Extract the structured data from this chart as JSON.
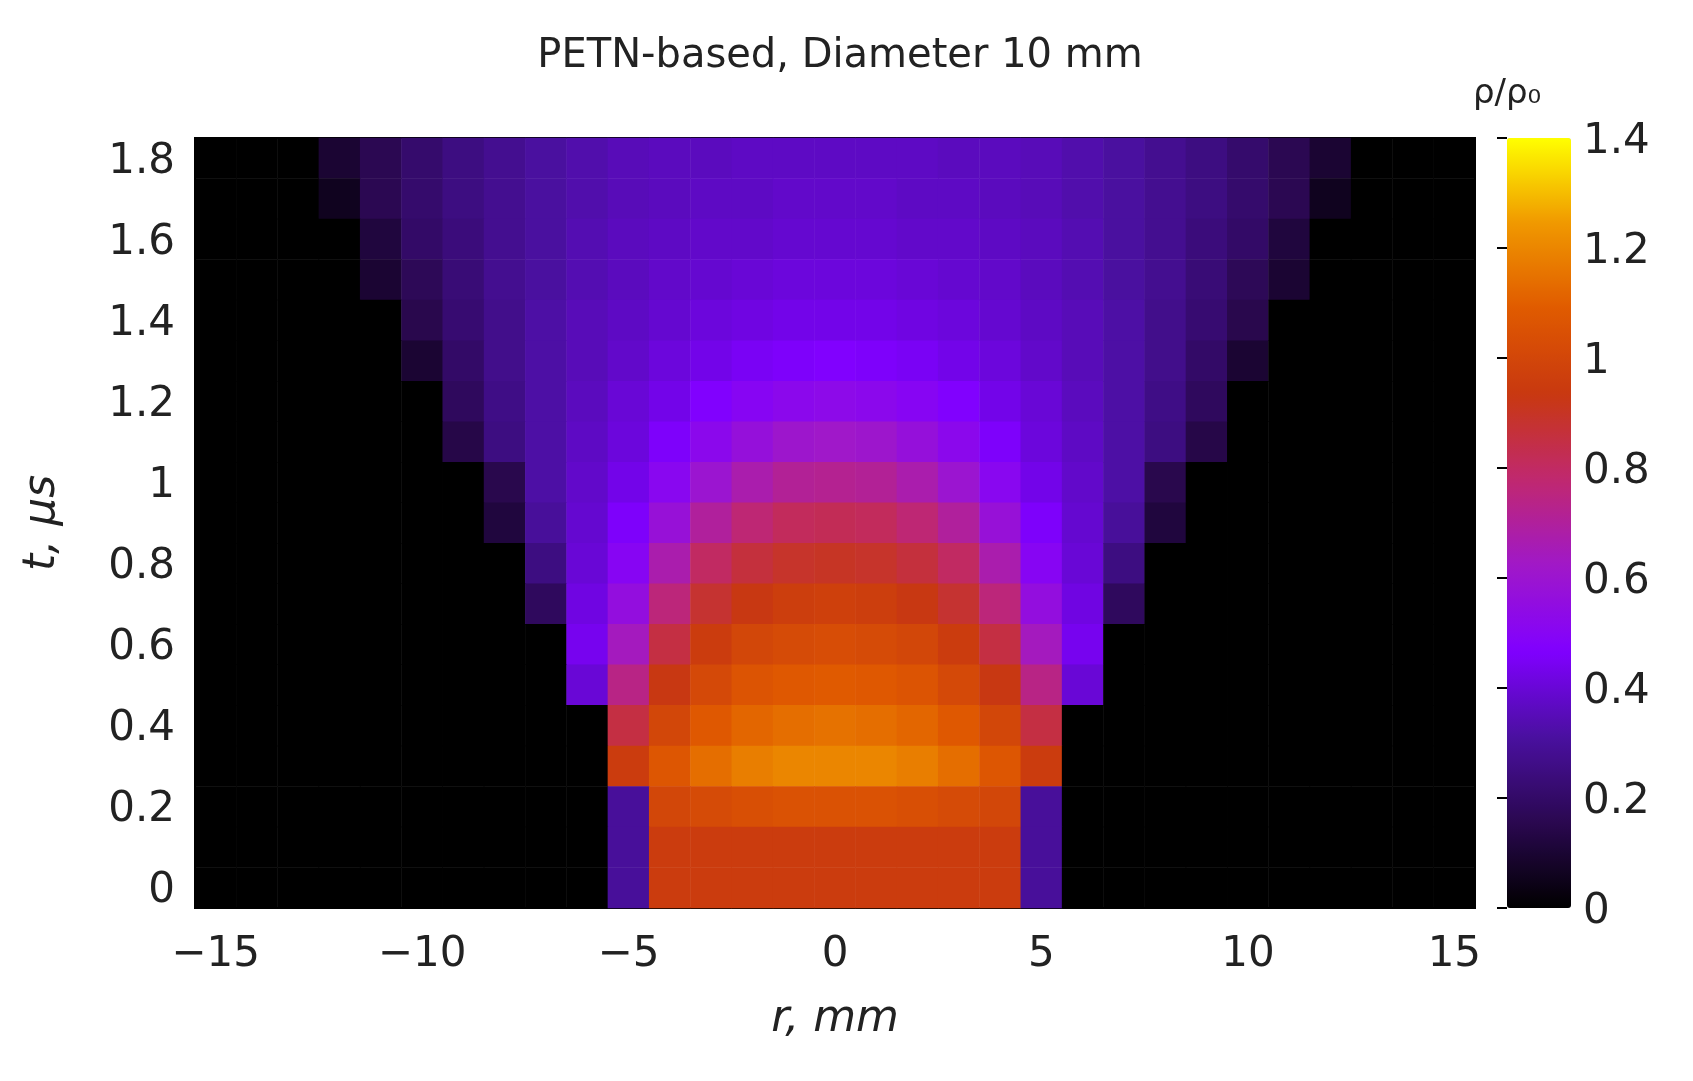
{
  "chart_data": {
    "type": "heatmap",
    "title": "PETN-based, Diameter 10 mm",
    "xlabel": "r, mm",
    "ylabel": "t, μs",
    "clabel": "ρ/ρ₀",
    "categories": [
      "−15",
      null,
      null,
      null,
      null,
      "−10",
      null,
      null,
      null,
      null,
      "−5",
      null,
      null,
      null,
      null,
      "0",
      null,
      null,
      null,
      null,
      "5",
      null,
      null,
      null,
      null,
      "10",
      null,
      null,
      null,
      null,
      "15"
    ],
    "y_categories": [
      "1.8",
      null,
      "1.6",
      null,
      "1.4",
      null,
      "1.2",
      null,
      "1",
      null,
      "0.8",
      null,
      "0.6",
      null,
      "0.4",
      null,
      "0.2",
      null,
      "0"
    ],
    "clim": [
      0,
      1.4
    ],
    "cticks": [
      0,
      0.2,
      0.4,
      0.6,
      0.8,
      1,
      1.2,
      1.4
    ],
    "cells": [
      [
        0,
        0,
        0,
        0.1,
        0.16,
        0.21,
        0.25,
        0.28,
        0.31,
        0.33,
        0.35,
        0.36,
        0.36,
        0.37,
        0.37,
        0.37,
        0.37,
        0.37,
        0.36,
        0.36,
        0.35,
        0.33,
        0.31,
        0.28,
        0.25,
        0.21,
        0.16,
        0.1,
        0,
        0,
        0
      ],
      [
        0,
        0,
        0,
        0.06,
        0.16,
        0.21,
        0.25,
        0.28,
        0.31,
        0.33,
        0.35,
        0.36,
        0.37,
        0.37,
        0.38,
        0.38,
        0.38,
        0.37,
        0.37,
        0.36,
        0.35,
        0.33,
        0.31,
        0.28,
        0.25,
        0.21,
        0.16,
        0.06,
        0,
        0,
        0
      ],
      [
        0,
        0,
        0,
        0,
        0.12,
        0.2,
        0.24,
        0.28,
        0.31,
        0.34,
        0.36,
        0.37,
        0.38,
        0.38,
        0.39,
        0.39,
        0.39,
        0.38,
        0.38,
        0.37,
        0.36,
        0.34,
        0.31,
        0.28,
        0.24,
        0.2,
        0.12,
        0,
        0,
        0,
        0
      ],
      [
        0,
        0,
        0,
        0,
        0.1,
        0.17,
        0.23,
        0.28,
        0.31,
        0.34,
        0.36,
        0.38,
        0.39,
        0.4,
        0.41,
        0.41,
        0.41,
        0.4,
        0.39,
        0.38,
        0.36,
        0.34,
        0.31,
        0.28,
        0.23,
        0.17,
        0.1,
        0,
        0,
        0,
        0
      ],
      [
        0,
        0,
        0,
        0,
        0,
        0.15,
        0.22,
        0.27,
        0.32,
        0.35,
        0.37,
        0.39,
        0.41,
        0.42,
        0.43,
        0.43,
        0.43,
        0.42,
        0.41,
        0.39,
        0.37,
        0.35,
        0.32,
        0.27,
        0.22,
        0.15,
        0,
        0,
        0,
        0,
        0
      ],
      [
        0,
        0,
        0,
        0,
        0,
        0.1,
        0.2,
        0.27,
        0.32,
        0.35,
        0.38,
        0.41,
        0.43,
        0.45,
        0.46,
        0.47,
        0.46,
        0.45,
        0.43,
        0.41,
        0.38,
        0.35,
        0.32,
        0.27,
        0.2,
        0.1,
        0,
        0,
        0,
        0,
        0
      ],
      [
        0,
        0,
        0,
        0,
        0,
        0,
        0.18,
        0.26,
        0.32,
        0.36,
        0.4,
        0.43,
        0.47,
        0.5,
        0.52,
        0.53,
        0.52,
        0.5,
        0.47,
        0.43,
        0.4,
        0.36,
        0.32,
        0.26,
        0.18,
        0,
        0,
        0,
        0,
        0,
        0
      ],
      [
        0,
        0,
        0,
        0,
        0,
        0,
        0.14,
        0.25,
        0.32,
        0.37,
        0.41,
        0.46,
        0.52,
        0.57,
        0.61,
        0.62,
        0.61,
        0.57,
        0.52,
        0.46,
        0.41,
        0.37,
        0.32,
        0.25,
        0.14,
        0,
        0,
        0,
        0,
        0,
        0
      ],
      [
        0,
        0,
        0,
        0,
        0,
        0,
        0,
        0.15,
        0.32,
        0.38,
        0.43,
        0.51,
        0.6,
        0.67,
        0.71,
        0.72,
        0.71,
        0.67,
        0.6,
        0.51,
        0.43,
        0.38,
        0.32,
        0.15,
        0,
        0,
        0,
        0,
        0,
        0,
        0
      ],
      [
        0,
        0,
        0,
        0,
        0,
        0,
        0,
        0.12,
        0.3,
        0.39,
        0.46,
        0.58,
        0.7,
        0.77,
        0.81,
        0.82,
        0.81,
        0.77,
        0.7,
        0.58,
        0.46,
        0.39,
        0.3,
        0.12,
        0,
        0,
        0,
        0,
        0,
        0,
        0
      ],
      [
        0,
        0,
        0,
        0,
        0,
        0,
        0,
        0,
        0.25,
        0.4,
        0.5,
        0.67,
        0.8,
        0.86,
        0.89,
        0.9,
        0.89,
        0.86,
        0.8,
        0.67,
        0.5,
        0.4,
        0.25,
        0,
        0,
        0,
        0,
        0,
        0,
        0,
        0
      ],
      [
        0,
        0,
        0,
        0,
        0,
        0,
        0,
        0,
        0.18,
        0.42,
        0.56,
        0.76,
        0.88,
        0.93,
        0.96,
        0.97,
        0.96,
        0.93,
        0.88,
        0.76,
        0.56,
        0.42,
        0.18,
        0,
        0,
        0,
        0,
        0,
        0,
        0,
        0
      ],
      [
        0,
        0,
        0,
        0,
        0,
        0,
        0,
        0,
        0,
        0.44,
        0.64,
        0.85,
        0.95,
        1,
        1.02,
        1.03,
        1.02,
        1,
        0.95,
        0.85,
        0.64,
        0.44,
        0,
        0,
        0,
        0,
        0,
        0,
        0,
        0,
        0
      ],
      [
        0,
        0,
        0,
        0,
        0,
        0,
        0,
        0,
        0,
        0.4,
        0.74,
        0.93,
        1.01,
        1.06,
        1.08,
        1.09,
        1.08,
        1.06,
        1.01,
        0.93,
        0.74,
        0.4,
        0,
        0,
        0,
        0,
        0,
        0,
        0,
        0,
        0
      ],
      [
        0,
        0,
        0,
        0,
        0,
        0,
        0,
        0,
        0,
        0,
        0.85,
        1,
        1.08,
        1.12,
        1.14,
        1.15,
        1.14,
        1.12,
        1.08,
        1,
        0.85,
        0,
        0,
        0,
        0,
        0,
        0,
        0,
        0,
        0,
        0
      ],
      [
        0,
        0,
        0,
        0,
        0,
        0,
        0,
        0,
        0,
        0,
        0.95,
        1.07,
        1.14,
        1.18,
        1.2,
        1.2,
        1.2,
        1.18,
        1.14,
        1.07,
        0.95,
        0,
        0,
        0,
        0,
        0,
        0,
        0,
        0,
        0,
        0
      ],
      [
        0,
        0,
        0,
        0,
        0,
        0,
        0,
        0,
        0,
        0,
        0.3,
        1,
        1.02,
        1.04,
        1.05,
        1.05,
        1.05,
        1.04,
        1.02,
        1,
        0.3,
        0,
        0,
        0,
        0,
        0,
        0,
        0,
        0,
        0,
        0
      ],
      [
        0,
        0,
        0,
        0,
        0,
        0,
        0,
        0,
        0,
        0,
        0.3,
        0.95,
        0.95,
        0.95,
        0.95,
        0.95,
        0.95,
        0.95,
        0.95,
        0.95,
        0.3,
        0,
        0,
        0,
        0,
        0,
        0,
        0,
        0,
        0,
        0
      ],
      [
        0,
        0,
        0,
        0,
        0,
        0,
        0,
        0,
        0,
        0,
        0.3,
        0.95,
        0.95,
        0.95,
        0.95,
        0.95,
        0.95,
        0.95,
        0.95,
        0.95,
        0.3,
        0,
        0,
        0,
        0,
        0,
        0,
        0,
        0,
        0,
        0
      ]
    ]
  }
}
